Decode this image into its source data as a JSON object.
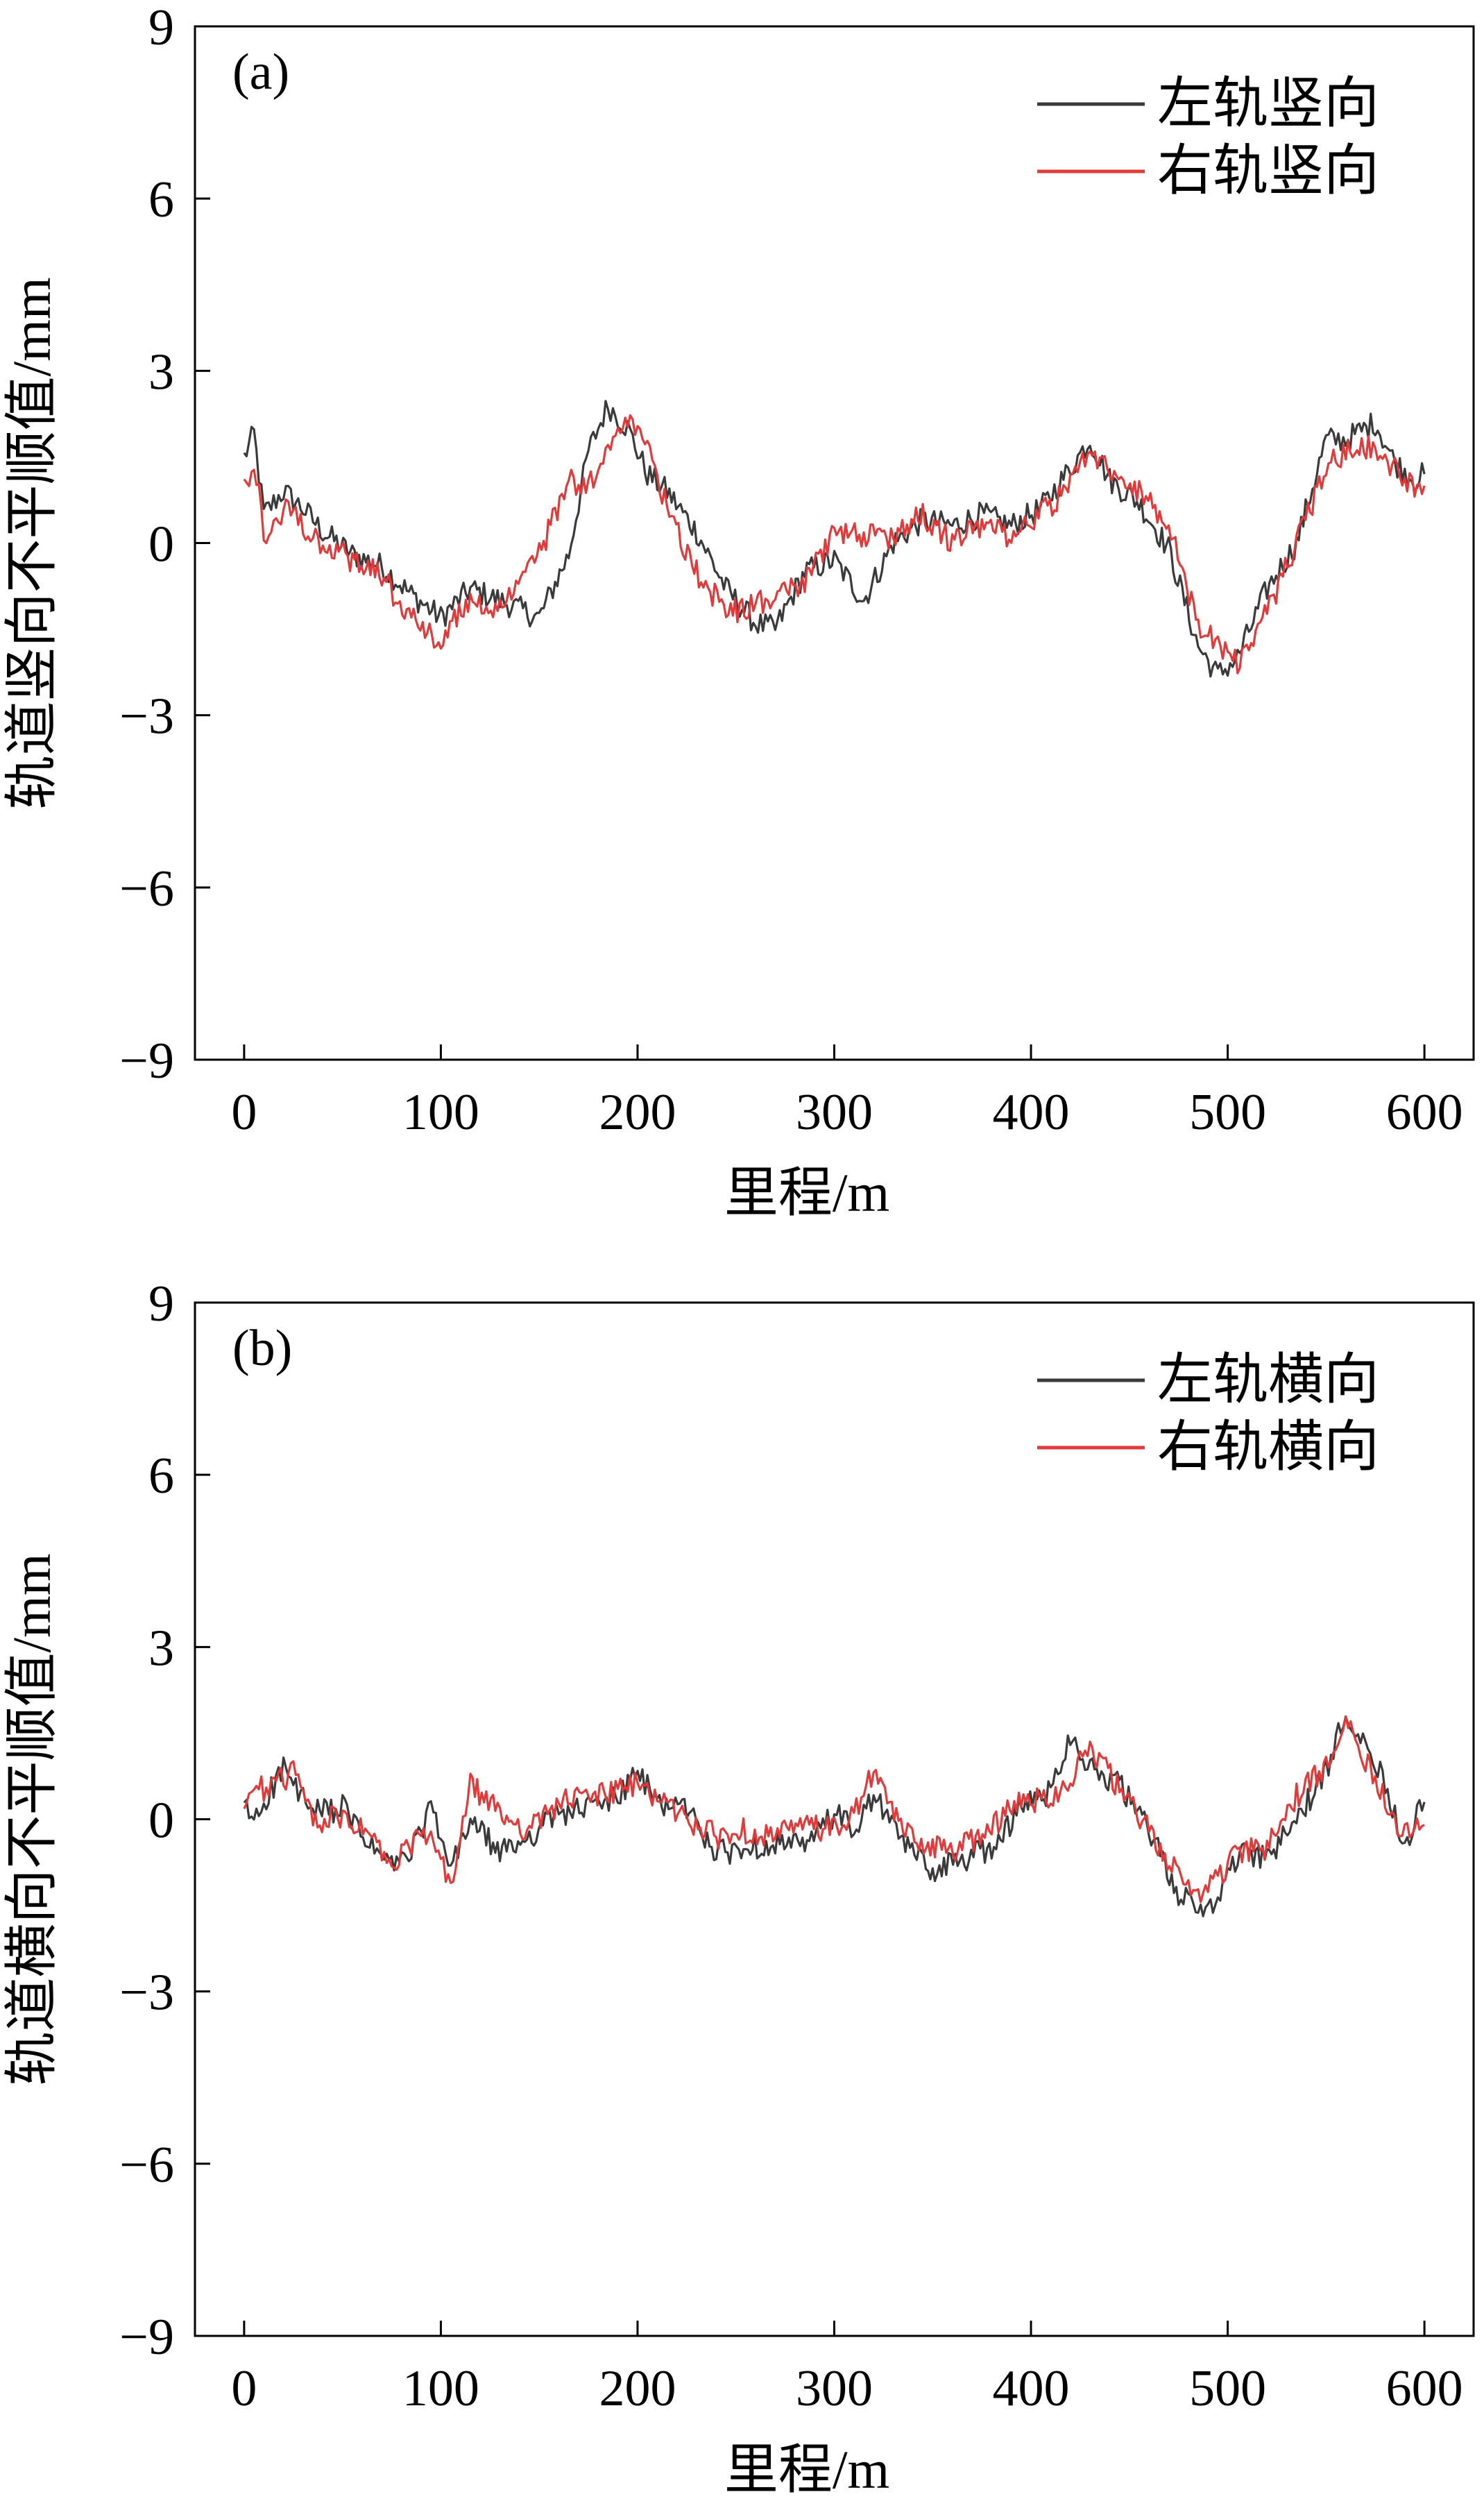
{
  "chart_data": [
    {
      "type": "line",
      "panel_label": "(a)",
      "xlabel": "里程/m",
      "ylabel": "轨道竖向不平顺值/mm",
      "xlim": [
        -25,
        625
      ],
      "ylim": [
        -9,
        9
      ],
      "xticks": [
        "0",
        "100",
        "200",
        "300",
        "400",
        "500",
        "600"
      ],
      "yticks": [
        "9",
        "6",
        "3",
        "0",
        "−3",
        "−6",
        "−9"
      ],
      "legend_position": "top-right",
      "series": [
        {
          "name": "左轨竖向",
          "color": "#3a3a3a",
          "x": [
            0,
            5,
            10,
            20,
            30,
            40,
            55,
            70,
            85,
            100,
            115,
            130,
            150,
            165,
            175,
            185,
            195,
            205,
            215,
            230,
            245,
            260,
            270,
            285,
            300,
            315,
            330,
            345,
            360,
            375,
            390,
            405,
            420,
            430,
            440,
            455,
            470,
            485,
            495,
            505,
            520,
            535,
            550,
            560,
            575,
            585,
            595,
            600
          ],
          "values": [
            1.5,
            1.9,
            0.5,
            0.9,
            0.6,
            0.2,
            -0.2,
            -0.4,
            -0.9,
            -1.3,
            -0.8,
            -1.0,
            -1.3,
            -0.2,
            1.6,
            2.4,
            2.0,
            1.2,
            0.9,
            0.2,
            -0.8,
            -1.4,
            -1.5,
            -0.5,
            -0.3,
            -1.0,
            0.0,
            0.4,
            0.3,
            0.5,
            0.3,
            0.6,
            1.3,
            1.8,
            1.1,
            0.7,
            -0.1,
            -1.8,
            -2.3,
            -2.0,
            -0.8,
            0.0,
            1.8,
            1.8,
            2.1,
            1.4,
            1.1,
            1.2
          ]
        },
        {
          "name": "右轨竖向",
          "color": "#e03a3a",
          "x": [
            0,
            5,
            10,
            20,
            30,
            40,
            55,
            70,
            85,
            100,
            115,
            130,
            150,
            165,
            175,
            185,
            195,
            205,
            215,
            230,
            245,
            260,
            270,
            285,
            300,
            315,
            330,
            345,
            360,
            375,
            390,
            405,
            420,
            430,
            440,
            455,
            470,
            485,
            495,
            505,
            520,
            535,
            550,
            560,
            575,
            585,
            595,
            600
          ],
          "values": [
            0.9,
            1.5,
            0.1,
            0.6,
            0.3,
            0.0,
            -0.3,
            -0.6,
            -1.3,
            -1.7,
            -1.0,
            -1.2,
            -0.2,
            1.1,
            1.0,
            1.6,
            2.1,
            1.6,
            0.6,
            -0.5,
            -1.2,
            -1.1,
            -0.9,
            -0.7,
            0.2,
            0.1,
            0.1,
            0.5,
            0.0,
            0.3,
            0.1,
            0.5,
            1.0,
            1.6,
            1.3,
            0.9,
            0.3,
            -1.4,
            -1.7,
            -2.1,
            -1.2,
            0.0,
            1.3,
            1.6,
            1.7,
            1.3,
            0.9,
            1.0
          ]
        }
      ]
    },
    {
      "type": "line",
      "panel_label": "(b)",
      "xlabel": "里程/m",
      "ylabel": "轨道横向不平顺值/mm",
      "xlim": [
        -25,
        625
      ],
      "ylim": [
        -9,
        9
      ],
      "xticks": [
        "0",
        "100",
        "200",
        "300",
        "400",
        "500",
        "600"
      ],
      "yticks": [
        "9",
        "6",
        "3",
        "0",
        "−3",
        "−6",
        "−9"
      ],
      "legend_position": "top-right",
      "series": [
        {
          "name": "左轨横向",
          "color": "#3a3a3a",
          "x": [
            0,
            5,
            10,
            20,
            25,
            35,
            50,
            65,
            75,
            85,
            95,
            105,
            115,
            130,
            145,
            160,
            175,
            190,
            200,
            210,
            225,
            240,
            255,
            270,
            285,
            300,
            310,
            320,
            335,
            350,
            365,
            380,
            395,
            410,
            420,
            430,
            445,
            460,
            475,
            485,
            495,
            505,
            520,
            535,
            550,
            560,
            570,
            580,
            590,
            600
          ],
          "values": [
            0.2,
            0.0,
            0.3,
            0.9,
            0.6,
            0.1,
            0.2,
            -0.5,
            -0.8,
            -0.6,
            0.2,
            -0.9,
            0.0,
            -0.6,
            -0.3,
            0.1,
            0.2,
            0.4,
            0.8,
            0.3,
            0.2,
            -0.6,
            -0.5,
            -0.4,
            -0.5,
            0.1,
            -0.2,
            0.4,
            -0.4,
            -0.9,
            -0.7,
            -0.5,
            0.2,
            0.5,
            1.5,
            0.9,
            0.6,
            -0.2,
            -1.3,
            -1.6,
            -1.4,
            -0.6,
            -0.7,
            0.0,
            0.8,
            1.9,
            1.4,
            0.6,
            -0.4,
            0.3
          ]
        },
        {
          "name": "右轨横向",
          "color": "#e03a3a",
          "x": [
            0,
            5,
            10,
            20,
            25,
            35,
            50,
            65,
            75,
            85,
            95,
            105,
            115,
            130,
            145,
            160,
            175,
            190,
            200,
            210,
            225,
            240,
            255,
            270,
            285,
            300,
            310,
            320,
            335,
            350,
            365,
            380,
            395,
            410,
            420,
            430,
            445,
            460,
            475,
            485,
            495,
            505,
            520,
            535,
            550,
            560,
            570,
            580,
            590,
            600
          ],
          "values": [
            0.4,
            0.6,
            0.5,
            0.7,
            0.8,
            0.0,
            0.0,
            -0.3,
            -0.9,
            -0.4,
            -0.3,
            -1.2,
            0.6,
            0.1,
            -0.2,
            0.3,
            0.4,
            0.5,
            0.6,
            0.4,
            0.0,
            -0.3,
            -0.2,
            -0.3,
            -0.1,
            -0.2,
            0.1,
            0.8,
            -0.2,
            -0.5,
            -0.5,
            -0.1,
            0.3,
            0.4,
            0.7,
            1.3,
            0.5,
            -0.2,
            -1.0,
            -1.3,
            -1.0,
            -0.6,
            -0.5,
            0.4,
            0.9,
            1.9,
            1.0,
            0.4,
            -0.3,
            -0.1
          ]
        }
      ]
    }
  ]
}
